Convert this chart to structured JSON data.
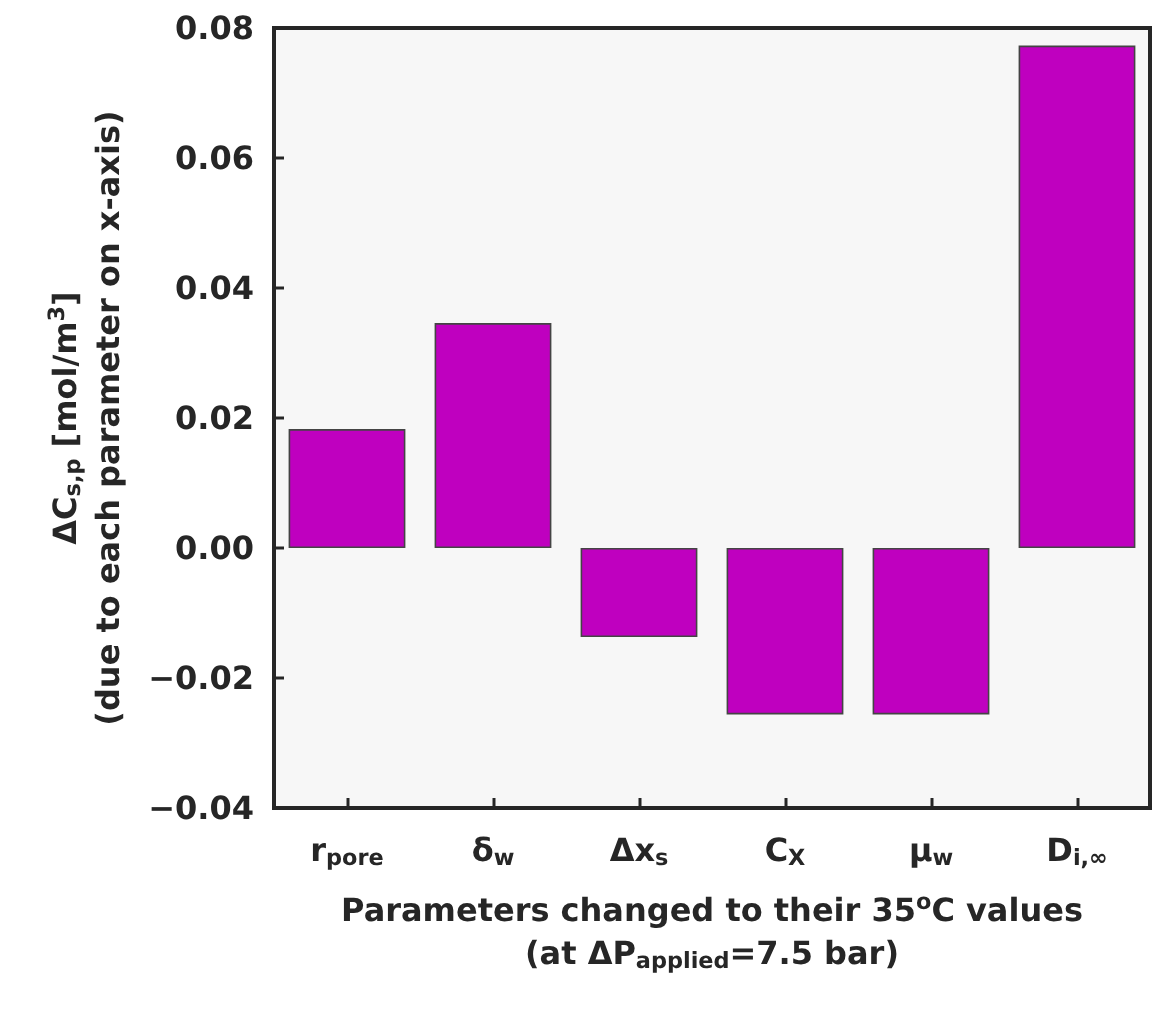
{
  "chart_data": {
    "type": "bar",
    "categories": [
      "r$_{pore}$",
      "δ$_{w}$",
      "Δx$_{s}$",
      "C$_{X}$",
      "μ$_{w}$",
      "D$_{i,∞}$"
    ],
    "values": [
      0.0183,
      0.0346,
      -0.0137,
      -0.0256,
      -0.0256,
      0.0773
    ],
    "color": "#bf00bf",
    "ylabel": "ΔC$_{s,p}$ [mol/m$^{3}$]\n(due to each parameter on x-axis)",
    "xlabel": "Parameters changed to their 35$^{o}$C values\n(at ΔP$_{applied}$=7.5 bar)",
    "ylim": [
      -0.04,
      0.08
    ],
    "yticks": [
      {
        "value": -0.04,
        "label": "−0.04"
      },
      {
        "value": -0.02,
        "label": "−0.02"
      },
      {
        "value": 0,
        "label": "0.00"
      },
      {
        "value": 0.02,
        "label": "0.02"
      },
      {
        "value": 0.04,
        "label": "0.04"
      },
      {
        "value": 0.06,
        "label": "0.06"
      },
      {
        "value": 0.08,
        "label": "0.08"
      }
    ],
    "grid": false
  }
}
